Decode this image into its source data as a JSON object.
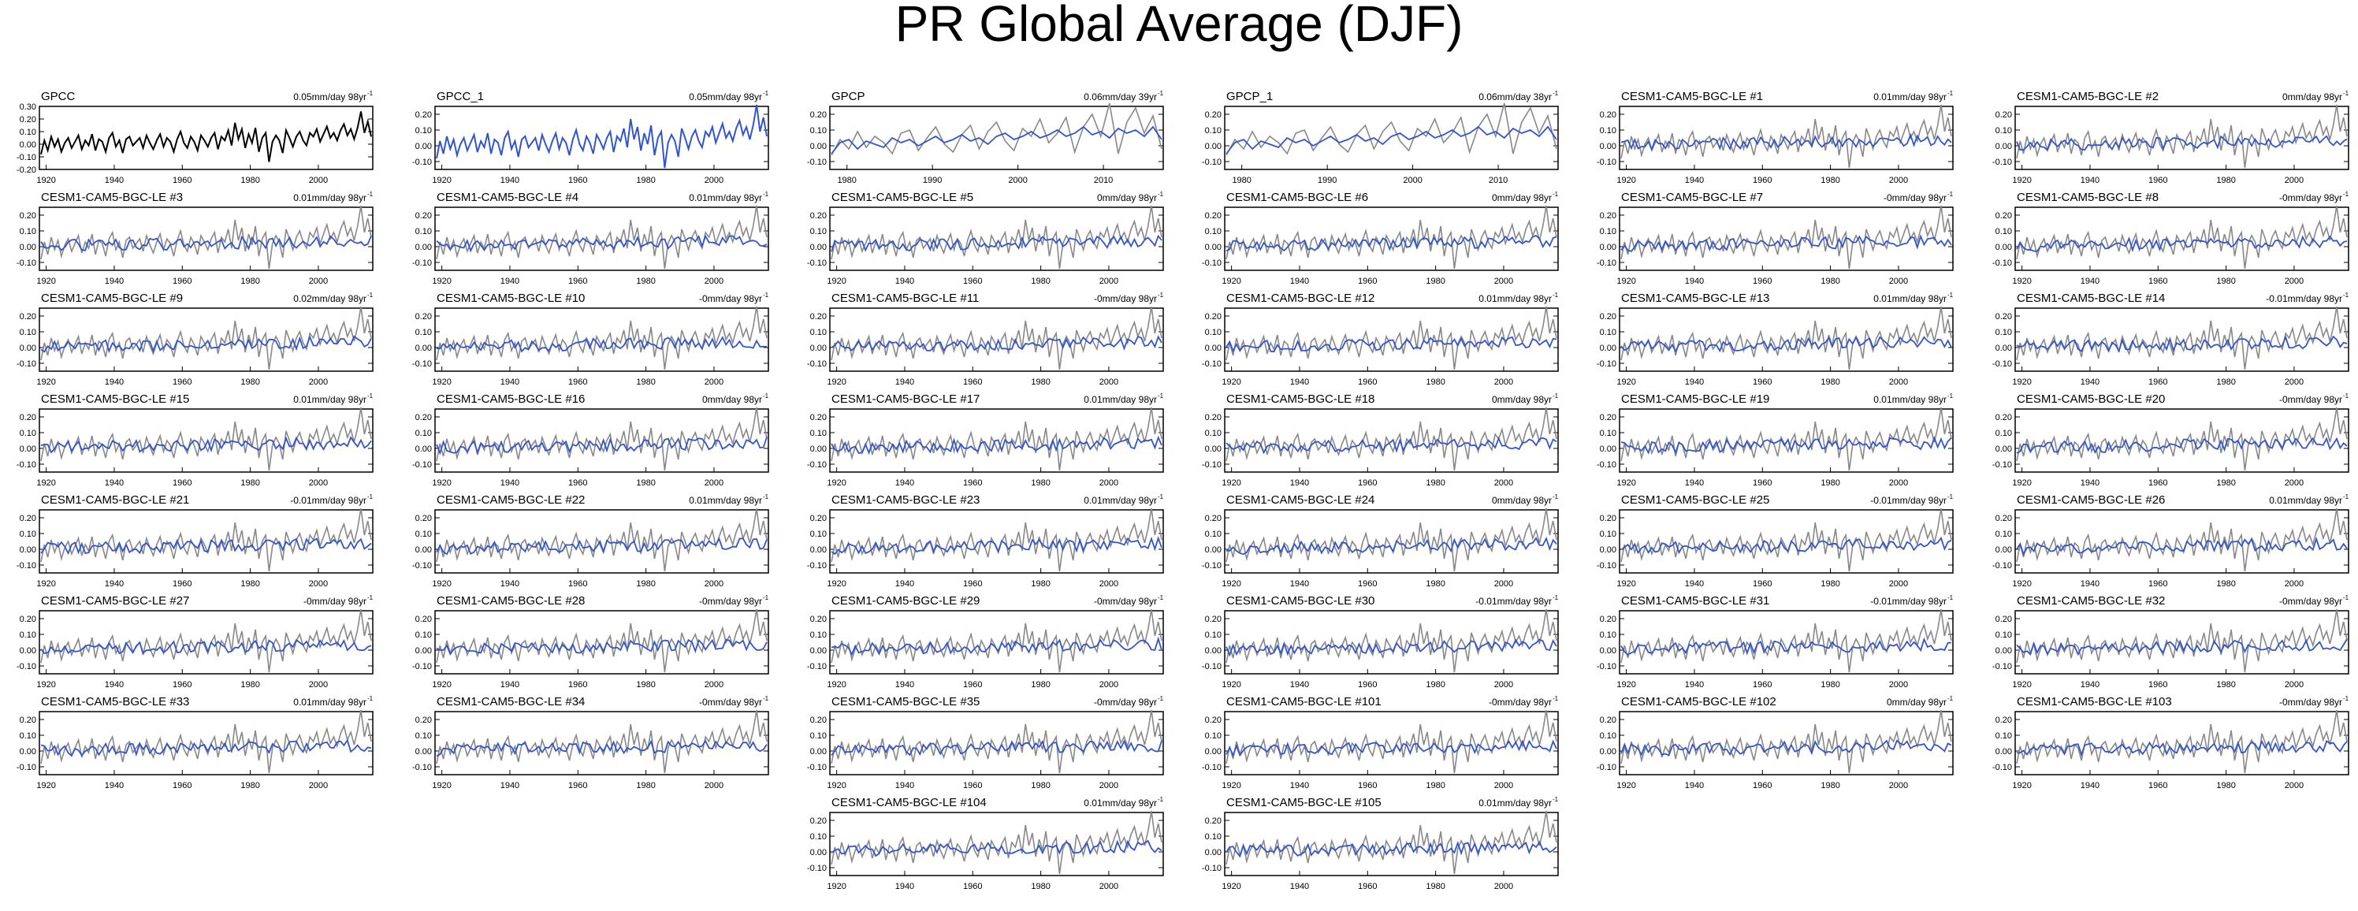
{
  "title": "PR Global Average (DJF)",
  "colors": {
    "obs": "#000000",
    "obs_copy": "#3355cc",
    "ref": "#888888",
    "model": "#3355cc",
    "axis": "#000000"
  },
  "yticks": [
    "0.20",
    "0.10",
    "0.00",
    "-0.10"
  ],
  "yticks_full": [
    "0.30",
    "0.20",
    "0.10",
    "0.00",
    "-0.10",
    "-0.20"
  ],
  "xticks_long": [
    "1920",
    "1940",
    "1960",
    "1980",
    "2000"
  ],
  "xticks_short": [
    "1980",
    "1990",
    "2000",
    "2010"
  ],
  "panels": [
    {
      "label": "GPCC",
      "trend": "0.05mm/day 98yr",
      "kind": "obs"
    },
    {
      "label": "GPCC_1",
      "trend": "0.05mm/day 98yr",
      "kind": "obs_copy"
    },
    {
      "label": "GPCP",
      "trend": "0.06mm/day 39yr",
      "kind": "short"
    },
    {
      "label": "GPCP_1",
      "trend": "0.06mm/day 38yr",
      "kind": "short"
    },
    {
      "label": "CESM1-CAM5-BGC-LE #1",
      "trend": "0.01mm/day 98yr",
      "kind": "model"
    },
    {
      "label": "CESM1-CAM5-BGC-LE #2",
      "trend": "0mm/day 98yr",
      "kind": "model"
    },
    {
      "label": "CESM1-CAM5-BGC-LE #3",
      "trend": "0.01mm/day 98yr",
      "kind": "model"
    },
    {
      "label": "CESM1-CAM5-BGC-LE #4",
      "trend": "0.01mm/day 98yr",
      "kind": "model"
    },
    {
      "label": "CESM1-CAM5-BGC-LE #5",
      "trend": "0mm/day 98yr",
      "kind": "model"
    },
    {
      "label": "CESM1-CAM5-BGC-LE #6",
      "trend": "0mm/day 98yr",
      "kind": "model"
    },
    {
      "label": "CESM1-CAM5-BGC-LE #7",
      "trend": "-0mm/day 98yr",
      "kind": "model"
    },
    {
      "label": "CESM1-CAM5-BGC-LE #8",
      "trend": "-0mm/day 98yr",
      "kind": "model"
    },
    {
      "label": "CESM1-CAM5-BGC-LE #9",
      "trend": "0.02mm/day 98yr",
      "kind": "model"
    },
    {
      "label": "CESM1-CAM5-BGC-LE #10",
      "trend": "-0mm/day 98yr",
      "kind": "model"
    },
    {
      "label": "CESM1-CAM5-BGC-LE #11",
      "trend": "-0mm/day 98yr",
      "kind": "model"
    },
    {
      "label": "CESM1-CAM5-BGC-LE #12",
      "trend": "0.01mm/day 98yr",
      "kind": "model"
    },
    {
      "label": "CESM1-CAM5-BGC-LE #13",
      "trend": "0.01mm/day 98yr",
      "kind": "model"
    },
    {
      "label": "CESM1-CAM5-BGC-LE #14",
      "trend": "-0.01mm/day 98yr",
      "kind": "model"
    },
    {
      "label": "CESM1-CAM5-BGC-LE #15",
      "trend": "0.01mm/day 98yr",
      "kind": "model"
    },
    {
      "label": "CESM1-CAM5-BGC-LE #16",
      "trend": "0mm/day 98yr",
      "kind": "model"
    },
    {
      "label": "CESM1-CAM5-BGC-LE #17",
      "trend": "0.01mm/day 98yr",
      "kind": "model"
    },
    {
      "label": "CESM1-CAM5-BGC-LE #18",
      "trend": "0mm/day 98yr",
      "kind": "model"
    },
    {
      "label": "CESM1-CAM5-BGC-LE #19",
      "trend": "0.01mm/day 98yr",
      "kind": "model"
    },
    {
      "label": "CESM1-CAM5-BGC-LE #20",
      "trend": "-0mm/day 98yr",
      "kind": "model"
    },
    {
      "label": "CESM1-CAM5-BGC-LE #21",
      "trend": "-0.01mm/day 98yr",
      "kind": "model"
    },
    {
      "label": "CESM1-CAM5-BGC-LE #22",
      "trend": "0.01mm/day 98yr",
      "kind": "model"
    },
    {
      "label": "CESM1-CAM5-BGC-LE #23",
      "trend": "0.01mm/day 98yr",
      "kind": "model"
    },
    {
      "label": "CESM1-CAM5-BGC-LE #24",
      "trend": "0mm/day 98yr",
      "kind": "model"
    },
    {
      "label": "CESM1-CAM5-BGC-LE #25",
      "trend": "-0.01mm/day 98yr",
      "kind": "model"
    },
    {
      "label": "CESM1-CAM5-BGC-LE #26",
      "trend": "0.01mm/day 98yr",
      "kind": "model"
    },
    {
      "label": "CESM1-CAM5-BGC-LE #27",
      "trend": "-0mm/day 98yr",
      "kind": "model"
    },
    {
      "label": "CESM1-CAM5-BGC-LE #28",
      "trend": "-0mm/day 98yr",
      "kind": "model"
    },
    {
      "label": "CESM1-CAM5-BGC-LE #29",
      "trend": "-0mm/day 98yr",
      "kind": "model"
    },
    {
      "label": "CESM1-CAM5-BGC-LE #30",
      "trend": "-0.01mm/day 98yr",
      "kind": "model"
    },
    {
      "label": "CESM1-CAM5-BGC-LE #31",
      "trend": "-0.01mm/day 98yr",
      "kind": "model"
    },
    {
      "label": "CESM1-CAM5-BGC-LE #32",
      "trend": "-0mm/day 98yr",
      "kind": "model"
    },
    {
      "label": "CESM1-CAM5-BGC-LE #33",
      "trend": "0.01mm/day 98yr",
      "kind": "model"
    },
    {
      "label": "CESM1-CAM5-BGC-LE #34",
      "trend": "-0mm/day 98yr",
      "kind": "model"
    },
    {
      "label": "CESM1-CAM5-BGC-LE #35",
      "trend": "-0mm/day 98yr",
      "kind": "model"
    },
    {
      "label": "CESM1-CAM5-BGC-LE #101",
      "trend": "-0mm/day 98yr",
      "kind": "model"
    },
    {
      "label": "CESM1-CAM5-BGC-LE #102",
      "trend": "0mm/day 98yr",
      "kind": "model"
    },
    {
      "label": "CESM1-CAM5-BGC-LE #103",
      "trend": "-0mm/day 98yr",
      "kind": "model"
    },
    {
      "label": "CESM1-CAM5-BGC-LE #104",
      "trend": "0.01mm/day 98yr",
      "kind": "model"
    },
    {
      "label": "CESM1-CAM5-BGC-LE #105",
      "trend": "0.01mm/day 98yr",
      "kind": "model"
    }
  ],
  "chart_data": {
    "type": "line",
    "title": "PR Global Average (DJF)",
    "xlim_long": [
      1918,
      2016
    ],
    "xlim_short": [
      1978,
      2017
    ],
    "ylim": [
      -0.15,
      0.25
    ],
    "ylim_full": [
      -0.2,
      0.3
    ],
    "observed_gpcc": [
      -0.08,
      0.03,
      -0.05,
      0.06,
      -0.02,
      0.04,
      -0.06,
      0.01,
      0.05,
      -0.03,
      0.02,
      0.07,
      -0.04,
      0.03,
      -0.01,
      0.08,
      -0.05,
      0.04,
      0.02,
      -0.06,
      0.05,
      0.09,
      -0.02,
      0.03,
      -0.07,
      0.04,
      0.06,
      -0.01,
      0.02,
      0.05,
      -0.03,
      0.07,
      0.01,
      -0.04,
      0.03,
      0.08,
      -0.02,
      0.05,
      0.02,
      -0.06,
      0.04,
      0.1,
      0.01,
      -0.03,
      0.06,
      0.02,
      -0.05,
      0.07,
      0.03,
      -0.02,
      0.05,
      0.09,
      -0.04,
      0.06,
      0.03,
      0.11,
      -0.01,
      0.17,
      0.04,
      0.12,
      -0.03,
      0.08,
      0.01,
      0.13,
      -0.06,
      0.05,
      0.09,
      -0.14,
      0.02,
      0.07,
      0.03,
      -0.07,
      0.11,
      0.05,
      -0.02,
      0.06,
      0.1,
      0.03,
      -0.01,
      0.09,
      0.06,
      0.12,
      0.02,
      0.08,
      0.14,
      0.05,
      0.09,
      0.03,
      0.11,
      0.16,
      0.07,
      0.12,
      0.04,
      0.13,
      0.26,
      0.09,
      0.18,
      0.06
    ],
    "gpcp_model": [
      -0.05,
      0.02,
      0.04,
      -0.02,
      0.03,
      0.01,
      -0.01,
      0.05,
      0.02,
      0.04,
      0.0,
      0.03,
      0.06,
      0.02,
      0.04,
      0.07,
      0.03,
      0.05,
      0.01,
      0.06,
      0.08,
      0.04,
      0.06,
      0.09,
      0.05,
      0.07,
      0.1,
      0.06,
      0.08,
      0.12,
      0.07,
      0.09,
      0.05,
      0.11,
      0.08,
      0.1,
      0.06,
      0.12,
      0.04
    ],
    "gpcp_observed": [
      -0.06,
      0.04,
      -0.02,
      0.09,
      -0.01,
      0.06,
      0.02,
      -0.05,
      0.08,
      0.1,
      -0.03,
      0.05,
      0.12,
      0.01,
      -0.04,
      0.07,
      0.13,
      -0.02,
      0.09,
      0.15,
      0.03,
      -0.03,
      0.11,
      0.06,
      0.17,
      0.02,
      0.08,
      0.18,
      -0.04,
      0.12,
      0.2,
      0.06,
      0.27,
      -0.05,
      0.15,
      0.24,
      0.08,
      0.19,
      -0.02
    ]
  }
}
